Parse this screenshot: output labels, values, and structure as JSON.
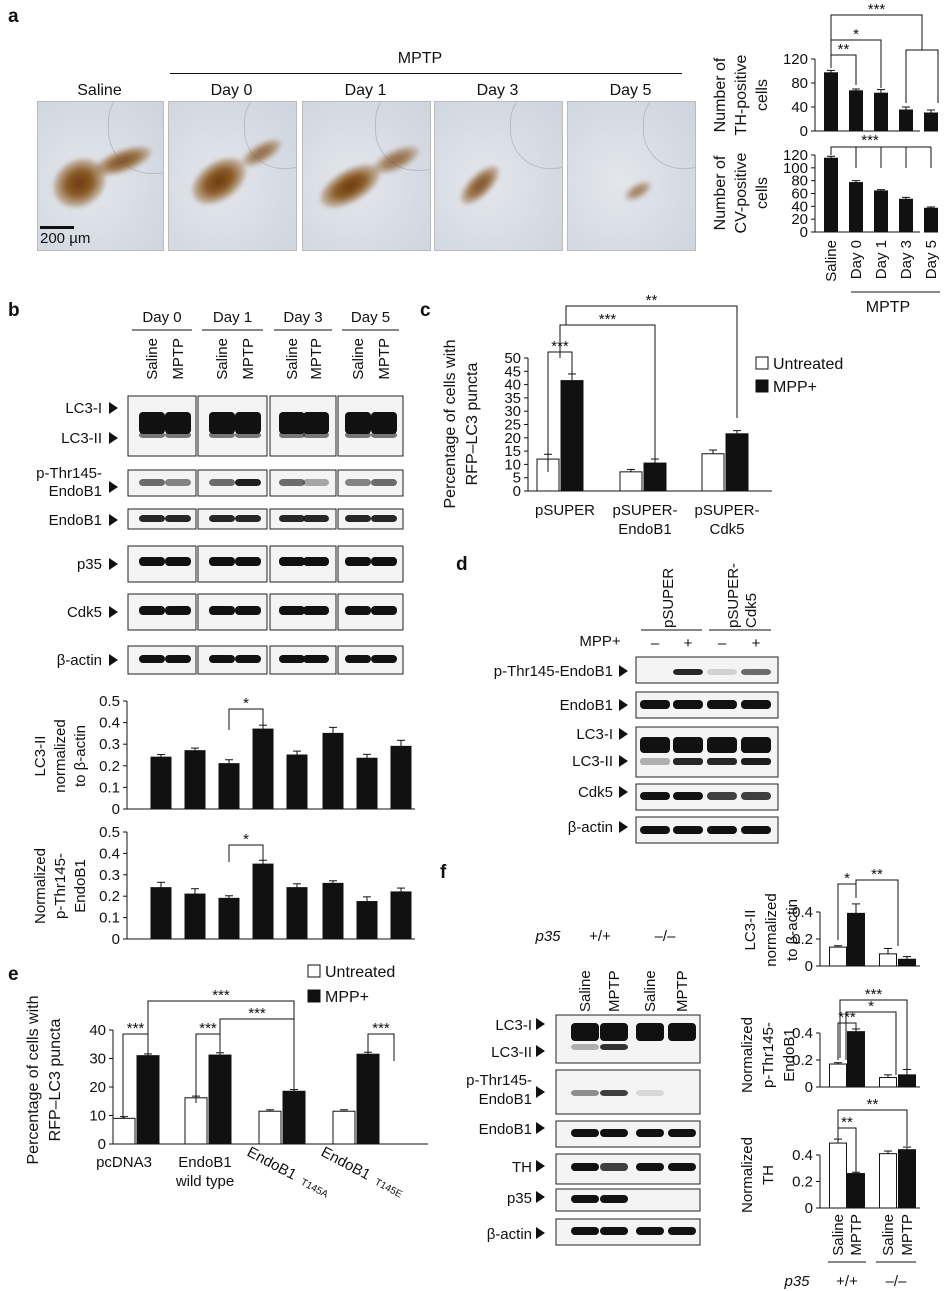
{
  "panels": {
    "a": "a",
    "b": "b",
    "c": "c",
    "d": "d",
    "e": "e",
    "f": "f"
  },
  "panel_a": {
    "header_group": "MPTP",
    "images": [
      {
        "label": "Saline"
      },
      {
        "label": "Day 0"
      },
      {
        "label": "Day 1"
      },
      {
        "label": "Day 3"
      },
      {
        "label": "Day 5"
      }
    ],
    "scale_bar": "200 µm"
  },
  "chart_data": [
    {
      "id": "a_th",
      "type": "bar",
      "ylabel": [
        "Number of",
        "TH-positive",
        "cells"
      ],
      "categories": [
        "Saline",
        "Day 0",
        "Day 1",
        "Day 3",
        "Day 5"
      ],
      "values": [
        97,
        67,
        63,
        35,
        30
      ],
      "errors": [
        4,
        3,
        6,
        5,
        5
      ],
      "ylim": [
        0,
        120
      ],
      "yticks": [
        0,
        40,
        80,
        120
      ],
      "fill": "#111111",
      "significance": [
        "**",
        "*",
        "***"
      ]
    },
    {
      "id": "a_cv",
      "type": "bar",
      "ylabel": [
        "Number of",
        "CV-positive",
        "cells"
      ],
      "categories": [
        "Saline",
        "Day 0",
        "Day 1",
        "Day 3",
        "Day 5"
      ],
      "values": [
        115,
        77,
        64,
        51,
        37
      ],
      "errors": [
        3,
        3,
        2,
        3,
        2
      ],
      "ylim": [
        0,
        120
      ],
      "yticks": [
        0,
        20,
        40,
        60,
        80,
        100,
        120
      ],
      "fill": "#111111",
      "significance": [
        "***"
      ],
      "group_label": "MPTP"
    },
    {
      "id": "b_lc3",
      "type": "bar",
      "ylabel": [
        "LC3-II",
        "normalized",
        "to β-actin"
      ],
      "values": [
        0.24,
        0.27,
        0.21,
        0.37,
        0.25,
        0.35,
        0.235,
        0.29
      ],
      "errors": [
        0.012,
        0.012,
        0.018,
        0.018,
        0.018,
        0.028,
        0.018,
        0.028
      ],
      "ylim": [
        0,
        0.5
      ],
      "yticks": [
        0,
        0.1,
        0.2,
        0.3,
        0.4,
        0.5
      ],
      "fill": "#111111",
      "significance": [
        "*"
      ]
    },
    {
      "id": "b_pthr",
      "type": "bar",
      "ylabel": [
        "Normalized",
        "p-Thr145-",
        "EndoB1"
      ],
      "values": [
        0.24,
        0.21,
        0.19,
        0.35,
        0.24,
        0.26,
        0.175,
        0.22
      ],
      "errors": [
        0.025,
        0.025,
        0.012,
        0.018,
        0.018,
        0.012,
        0.022,
        0.018
      ],
      "ylim": [
        0,
        0.5
      ],
      "yticks": [
        0,
        0.1,
        0.2,
        0.3,
        0.4,
        0.5
      ],
      "fill": "#111111",
      "significance": [
        "*"
      ]
    },
    {
      "id": "c",
      "type": "bar",
      "ylabel": [
        "Percentage of cells with",
        "RFP–LC3 puncta"
      ],
      "categories": [
        "pSUPER",
        "pSUPER-EndoB1",
        "pSUPER-Cdk5"
      ],
      "series": [
        {
          "name": "Untreated",
          "values": [
            12,
            7.2,
            14
          ],
          "errors": [
            1.8,
            0.9,
            1.4
          ],
          "color": "#ffffff"
        },
        {
          "name": "MPP+",
          "values": [
            41.5,
            10.5,
            21.5
          ],
          "errors": [
            2.5,
            1.5,
            1.2
          ],
          "color": "#111111"
        }
      ],
      "ylim": [
        0,
        50
      ],
      "yticks": [
        0,
        5,
        10,
        15,
        20,
        25,
        30,
        35,
        40,
        45,
        50
      ],
      "significance": [
        "***",
        "***",
        "**"
      ],
      "legend": "top-right"
    },
    {
      "id": "e",
      "type": "bar",
      "ylabel": [
        "Percentage of cells with",
        "RFP–LC3 puncta"
      ],
      "categories": [
        "pcDNA3",
        "EndoB1 wild type",
        "EndoB1T145A",
        "EndoB1T145E"
      ],
      "series": [
        {
          "name": "Untreated",
          "values": [
            9,
            16.2,
            11.5,
            11.5
          ],
          "errors": [
            0.6,
            0.6,
            0.5,
            0.5
          ],
          "color": "#ffffff"
        },
        {
          "name": "MPP+",
          "values": [
            31,
            31.2,
            18.5,
            31.5
          ],
          "errors": [
            0.6,
            0.8,
            0.6,
            0.7
          ],
          "color": "#111111"
        }
      ],
      "ylim": [
        0,
        40
      ],
      "yticks": [
        0,
        10,
        20,
        30,
        40
      ],
      "significance": [
        "***",
        "***",
        "***",
        "***",
        "***"
      ],
      "legend": "top-right"
    },
    {
      "id": "f_lc3",
      "type": "bar",
      "ylabel": [
        "LC3-II",
        "normalized",
        "to β-actin"
      ],
      "categories": [
        "Saline",
        "MPTP",
        "Saline",
        "MPTP"
      ],
      "values": [
        0.14,
        0.39,
        0.09,
        0.05
      ],
      "errors": [
        0.01,
        0.07,
        0.04,
        0.02
      ],
      "fills": [
        "#ffffff",
        "#111111",
        "#ffffff",
        "#111111"
      ],
      "ylim": [
        0,
        0.4
      ],
      "yticks": [
        0,
        0.2,
        0.4
      ],
      "significance": [
        "*",
        "**"
      ]
    },
    {
      "id": "f_pthr",
      "type": "bar",
      "ylabel": [
        "Normalized",
        "p-Thr145-",
        "EndoB1"
      ],
      "categories": [
        "Saline",
        "MPTP",
        "Saline",
        "MPTP"
      ],
      "values": [
        0.17,
        0.41,
        0.07,
        0.09
      ],
      "errors": [
        0.01,
        0.02,
        0.02,
        0.04
      ],
      "fills": [
        "#ffffff",
        "#111111",
        "#ffffff",
        "#111111"
      ],
      "ylim": [
        0,
        0.4
      ],
      "yticks": [
        0,
        0.2,
        0.4
      ],
      "significance": [
        "***",
        "*",
        "***"
      ]
    },
    {
      "id": "f_th",
      "type": "bar",
      "ylabel": [
        "Normalized",
        "TH"
      ],
      "categories": [
        "Saline",
        "MPTP",
        "Saline",
        "MPTP"
      ],
      "values": [
        0.49,
        0.26,
        0.41,
        0.44
      ],
      "errors": [
        0.03,
        0.01,
        0.02,
        0.02
      ],
      "fills": [
        "#ffffff",
        "#111111",
        "#ffffff",
        "#111111"
      ],
      "ylim": [
        0,
        0.4
      ],
      "yticks": [
        0,
        0.2,
        0.4
      ],
      "significance": [
        "**",
        "**"
      ],
      "genotype_label": "p35",
      "genotypes": [
        "+/+",
        "–/–"
      ]
    }
  ],
  "panel_b_blot": {
    "days": [
      "Day 0",
      "Day 1",
      "Day 3",
      "Day 5"
    ],
    "lanes": [
      "Saline",
      "MPTP",
      "Saline",
      "MPTP",
      "Saline",
      "MPTP",
      "Saline",
      "MPTP"
    ],
    "rows": [
      {
        "label": "LC3-I"
      },
      {
        "label": "LC3-II"
      },
      {
        "label": "p-Thr145-"
      },
      {
        "label": "EndoB1"
      },
      {
        "label": "EndoB1"
      },
      {
        "label": "p35"
      },
      {
        "label": "Cdk5"
      },
      {
        "label": "β-actin"
      }
    ]
  },
  "panel_d_blot": {
    "groups": [
      "pSUPER",
      "pSUPER-Cdk5"
    ],
    "group_lines": [
      [
        "pSUPER"
      ],
      [
        "pSUPER-",
        "Cdk5"
      ]
    ],
    "treatment": "MPP+",
    "signs": [
      "–",
      "+",
      "–",
      "+"
    ],
    "rows": [
      "p-Thr145-EndoB1",
      "EndoB1",
      "LC3-I",
      "LC3-II",
      "Cdk5",
      "β-actin"
    ]
  },
  "panel_f_blot": {
    "genotype_label": "p35",
    "genotypes": [
      "+/+",
      "–/–"
    ],
    "lanes": [
      "Saline",
      "MPTP",
      "Saline",
      "MPTP"
    ],
    "rows": [
      "LC3-I",
      "LC3-II",
      "p-Thr145-",
      "EndoB1",
      "EndoB1",
      "TH",
      "p35",
      "β-actin"
    ]
  }
}
